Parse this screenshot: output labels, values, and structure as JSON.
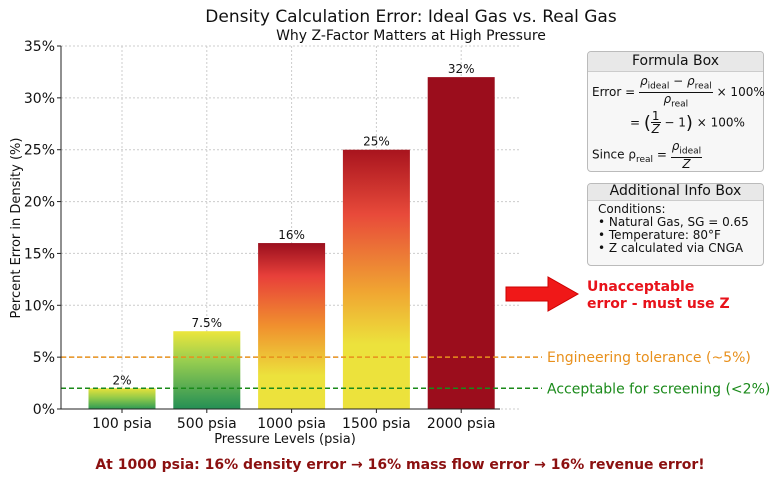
{
  "chart_data": {
    "type": "bar",
    "title": "Density Calculation Error: Ideal Gas vs. Real Gas",
    "subtitle": "Why Z-Factor Matters at High Pressure",
    "xlabel": "Pressure Levels (psia)",
    "ylabel": "Percent Error in Density (%)",
    "categories": [
      "100 psia",
      "500 psia",
      "1000 psia",
      "1500 psia",
      "2000 psia"
    ],
    "values": [
      2,
      7.5,
      16,
      25,
      32
    ],
    "data_labels": [
      "2%",
      "7.5%",
      "16%",
      "25%",
      "32%"
    ],
    "ylim": [
      0,
      35
    ],
    "yticks": [
      0,
      5,
      10,
      15,
      20,
      25,
      30,
      35
    ],
    "ytick_labels": [
      "0%",
      "5%",
      "10%",
      "15%",
      "20%",
      "25%",
      "30%",
      "35%"
    ],
    "grid": true,
    "reference_lines": [
      {
        "value": 5,
        "label": "Engineering tolerance (~5%)",
        "color": "#e8901c"
      },
      {
        "value": 2,
        "label": "Acceptable for screening (<2%)",
        "color": "#1a8a1a"
      }
    ],
    "annotation": {
      "line1": "Unacceptable",
      "line2": "error - must use Z",
      "color": "#e8121a"
    },
    "footer": "At 1000 psia: 16% density error → 16% mass flow error → 16% revenue error!",
    "footer_color": "#8b1010"
  },
  "formula_box": {
    "title": "Formula Box",
    "error": "Error =",
    "rho_ideal": "ρ",
    "ideal": "ideal",
    "real": "real",
    "minus": " − ",
    "times100": "× 100%",
    "one": "1",
    "z": "Z",
    "minus_one": "− 1",
    "since": "Since ρ",
    "equals": "="
  },
  "info_box": {
    "title": "Additional Info Box",
    "lines": [
      "Conditions:",
      "• Natural Gas, SG = 0.65",
      "• Temperature: 80°F",
      "• Z calculated via CNGA"
    ]
  }
}
